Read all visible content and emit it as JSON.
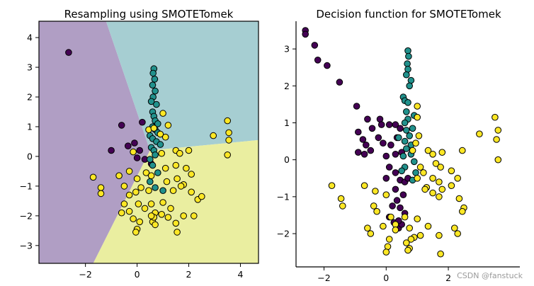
{
  "colors": {
    "purple_region": "#b09ec4",
    "teal_region": "#a6ced2",
    "yellow_region": "#eaeea0",
    "purple": "#440154",
    "teal": "#21918c",
    "yellow": "#fde725",
    "marker_edge": "#000000",
    "axis": "#000000"
  },
  "watermark": "CSDN @fanstuck",
  "chart_data": [
    {
      "type": "scatter",
      "title": "Resampling using SMOTETomek",
      "xlim": [
        -3.8,
        4.7
      ],
      "ylim": [
        -3.6,
        4.55
      ],
      "xticks": [
        -2,
        0,
        2,
        4
      ],
      "yticks": [
        -3,
        -2,
        -1,
        0,
        1,
        2,
        3,
        4
      ],
      "xtick_labels": [
        "−2",
        "0",
        "2",
        "4"
      ],
      "ytick_labels": [
        "−3",
        "−2",
        "−1",
        "0",
        "1",
        "2",
        "3",
        "4"
      ],
      "background": "decision regions (purple left, teal top-right, yellow bottom)",
      "series": [
        {
          "color": "purple",
          "points": [
            [
              -2.65,
              3.5
            ],
            [
              -0.6,
              1.05
            ],
            [
              -1.0,
              0.2
            ],
            [
              -0.1,
              0.45
            ],
            [
              0.2,
              1.15
            ],
            [
              0.1,
              0.2
            ],
            [
              0.0,
              -0.05
            ],
            [
              0.3,
              -0.1
            ],
            [
              0.55,
              -0.25
            ],
            [
              -0.35,
              0.35
            ]
          ]
        },
        {
          "color": "teal",
          "points": [
            [
              0.65,
              2.95
            ],
            [
              0.62,
              2.8
            ],
            [
              0.68,
              2.6
            ],
            [
              0.6,
              2.4
            ],
            [
              0.7,
              2.2
            ],
            [
              0.62,
              2.0
            ],
            [
              0.55,
              1.85
            ],
            [
              0.75,
              1.75
            ],
            [
              0.6,
              1.5
            ],
            [
              0.65,
              1.35
            ],
            [
              0.7,
              1.2
            ],
            [
              0.8,
              1.1
            ],
            [
              0.6,
              1.0
            ],
            [
              0.7,
              0.9
            ],
            [
              0.5,
              0.7
            ],
            [
              0.8,
              0.8
            ],
            [
              0.6,
              0.6
            ],
            [
              0.75,
              0.5
            ],
            [
              0.9,
              0.4
            ],
            [
              0.55,
              0.3
            ],
            [
              0.65,
              0.2
            ],
            [
              0.7,
              0.05
            ],
            [
              0.5,
              -0.1
            ],
            [
              0.6,
              -0.3
            ],
            [
              0.8,
              -0.55
            ],
            [
              0.5,
              -0.85
            ],
            [
              0.7,
              -1.05
            ],
            [
              1.0,
              -1.15
            ]
          ]
        },
        {
          "color": "yellow",
          "points": [
            [
              1.0,
              1.45
            ],
            [
              1.2,
              1.05
            ],
            [
              0.9,
              0.75
            ],
            [
              0.45,
              0.9
            ],
            [
              0.65,
              0.95
            ],
            [
              1.1,
              0.65
            ],
            [
              3.5,
              1.2
            ],
            [
              3.55,
              0.8
            ],
            [
              3.55,
              0.55
            ],
            [
              2.95,
              0.7
            ],
            [
              0.95,
              0.1
            ],
            [
              1.5,
              0.2
            ],
            [
              1.65,
              0.1
            ],
            [
              2.0,
              0.2
            ],
            [
              -0.15,
              0.15
            ],
            [
              -1.7,
              -0.7
            ],
            [
              -1.4,
              -1.05
            ],
            [
              -1.4,
              -1.25
            ],
            [
              -0.7,
              -0.65
            ],
            [
              -0.3,
              -0.5
            ],
            [
              0.0,
              -0.75
            ],
            [
              0.35,
              -0.55
            ],
            [
              0.55,
              -0.65
            ],
            [
              1.1,
              -0.4
            ],
            [
              1.5,
              -0.3
            ],
            [
              1.9,
              -0.4
            ],
            [
              1.55,
              -0.75
            ],
            [
              2.1,
              -0.6
            ],
            [
              1.8,
              -0.95
            ],
            [
              1.15,
              -0.85
            ],
            [
              -0.5,
              -1.0
            ],
            [
              -0.3,
              -1.3
            ],
            [
              -0.05,
              -1.2
            ],
            [
              0.15,
              -1.05
            ],
            [
              0.45,
              -1.15
            ],
            [
              -0.5,
              -1.6
            ],
            [
              -0.3,
              -1.85
            ],
            [
              -0.6,
              -1.9
            ],
            [
              0.05,
              -1.6
            ],
            [
              0.3,
              -1.75
            ],
            [
              0.55,
              -1.6
            ],
            [
              0.7,
              -1.9
            ],
            [
              -0.15,
              -2.1
            ],
            [
              0.1,
              -2.2
            ],
            [
              0.6,
              -2.2
            ],
            [
              0.7,
              -2.3
            ],
            [
              0.65,
              -2.05
            ],
            [
              1.0,
              -1.55
            ],
            [
              1.3,
              -1.75
            ],
            [
              1.2,
              -2.05
            ],
            [
              1.5,
              -2.25
            ],
            [
              1.55,
              -2.55
            ],
            [
              1.8,
              -2.0
            ],
            [
              2.2,
              -2.0
            ],
            [
              2.35,
              -1.45
            ],
            [
              2.5,
              -1.35
            ],
            [
              2.1,
              -1.2
            ],
            [
              1.4,
              -1.15
            ],
            [
              0.0,
              -2.45
            ],
            [
              -0.05,
              -2.55
            ],
            [
              3.5,
              0.05
            ],
            [
              0.95,
              -1.95
            ],
            [
              0.55,
              -2.0
            ],
            [
              1.7,
              -1.0
            ]
          ]
        }
      ]
    },
    {
      "type": "scatter",
      "title": "Decision function for SMOTETomek",
      "xlim": [
        -2.9,
        4.3
      ],
      "ylim": [
        -2.9,
        3.75
      ],
      "xticks": [
        -2,
        0,
        2
      ],
      "yticks": [
        -2,
        -1,
        0,
        1,
        2,
        3
      ],
      "xtick_labels": [
        "−2",
        "0",
        "2"
      ],
      "ytick_labels": [
        "−2",
        "−1",
        "0",
        "1",
        "2",
        "3"
      ],
      "series": [
        {
          "color": "purple",
          "points": [
            [
              -2.6,
              3.5
            ],
            [
              -2.6,
              3.4
            ],
            [
              -2.3,
              3.1
            ],
            [
              -2.2,
              2.7
            ],
            [
              -1.9,
              2.55
            ],
            [
              -1.5,
              2.1
            ],
            [
              -0.95,
              1.45
            ],
            [
              -0.6,
              1.1
            ],
            [
              -0.45,
              0.85
            ],
            [
              -0.9,
              0.75
            ],
            [
              -0.75,
              0.55
            ],
            [
              -0.65,
              0.4
            ],
            [
              -0.9,
              0.2
            ],
            [
              -0.5,
              0.25
            ],
            [
              -0.7,
              0.15
            ],
            [
              -0.2,
              1.1
            ],
            [
              -0.15,
              0.95
            ],
            [
              0.1,
              0.95
            ],
            [
              0.3,
              0.95
            ],
            [
              -0.25,
              0.6
            ],
            [
              -0.1,
              0.45
            ],
            [
              0.15,
              0.4
            ],
            [
              0.35,
              0.6
            ],
            [
              0.45,
              0.85
            ],
            [
              0.0,
              0.1
            ],
            [
              0.3,
              0.15
            ],
            [
              0.5,
              0.2
            ],
            [
              0.1,
              -0.2
            ],
            [
              0.3,
              -0.35
            ],
            [
              0.0,
              -0.5
            ],
            [
              0.3,
              -0.8
            ],
            [
              0.45,
              -0.55
            ],
            [
              0.55,
              -0.95
            ],
            [
              0.35,
              -1.1
            ],
            [
              0.2,
              -1.25
            ],
            [
              0.45,
              -1.3
            ],
            [
              0.6,
              -1.45
            ],
            [
              0.1,
              -1.55
            ],
            [
              0.25,
              -1.7
            ],
            [
              0.4,
              -1.85
            ],
            [
              0.5,
              -1.75
            ],
            [
              0.6,
              -0.6
            ],
            [
              0.7,
              -0.5
            ],
            [
              0.4,
              -1.65
            ]
          ]
        },
        {
          "color": "teal",
          "points": [
            [
              0.7,
              2.95
            ],
            [
              0.72,
              2.8
            ],
            [
              0.68,
              2.6
            ],
            [
              0.7,
              2.45
            ],
            [
              0.65,
              2.3
            ],
            [
              0.8,
              2.15
            ],
            [
              0.75,
              2.0
            ],
            [
              0.55,
              1.7
            ],
            [
              0.6,
              1.6
            ],
            [
              0.7,
              1.55
            ],
            [
              0.65,
              1.3
            ],
            [
              0.9,
              1.2
            ],
            [
              0.7,
              1.1
            ],
            [
              0.6,
              1.0
            ],
            [
              0.85,
              0.85
            ],
            [
              0.65,
              0.8
            ],
            [
              0.75,
              0.65
            ],
            [
              0.6,
              0.5
            ],
            [
              0.8,
              0.4
            ],
            [
              0.65,
              0.3
            ],
            [
              0.8,
              0.15
            ],
            [
              0.55,
              0.1
            ],
            [
              0.9,
              -0.05
            ],
            [
              0.6,
              -0.2
            ],
            [
              0.95,
              -0.35
            ],
            [
              0.85,
              -0.55
            ],
            [
              0.4,
              0.6
            ],
            [
              0.5,
              -0.3
            ]
          ]
        },
        {
          "color": "yellow",
          "points": [
            [
              1.0,
              1.45
            ],
            [
              1.0,
              1.15
            ],
            [
              1.05,
              0.65
            ],
            [
              0.95,
              0.45
            ],
            [
              0.85,
              0.25
            ],
            [
              1.35,
              0.25
            ],
            [
              1.5,
              0.15
            ],
            [
              1.8,
              0.2
            ],
            [
              2.45,
              0.25
            ],
            [
              3.5,
              1.15
            ],
            [
              3.6,
              0.8
            ],
            [
              3.55,
              0.55
            ],
            [
              3.0,
              0.7
            ],
            [
              3.6,
              0.0
            ],
            [
              1.1,
              -0.2
            ],
            [
              1.6,
              -0.1
            ],
            [
              1.75,
              -0.2
            ],
            [
              1.5,
              -0.5
            ],
            [
              1.7,
              -0.6
            ],
            [
              2.1,
              -0.3
            ],
            [
              2.3,
              -0.5
            ],
            [
              2.1,
              -0.7
            ],
            [
              1.8,
              -0.8
            ],
            [
              1.3,
              -0.75
            ],
            [
              1.2,
              -0.35
            ],
            [
              1.0,
              -0.5
            ],
            [
              -1.75,
              -0.7
            ],
            [
              -1.45,
              -1.05
            ],
            [
              -1.4,
              -1.25
            ],
            [
              -0.7,
              -0.7
            ],
            [
              -0.35,
              -0.85
            ],
            [
              0.0,
              -0.95
            ],
            [
              1.25,
              -0.8
            ],
            [
              1.5,
              -0.9
            ],
            [
              1.7,
              -1.0
            ],
            [
              2.35,
              -1.05
            ],
            [
              2.5,
              -1.3
            ],
            [
              2.45,
              -1.4
            ],
            [
              -0.4,
              -1.25
            ],
            [
              -0.3,
              -1.4
            ],
            [
              -0.6,
              -1.85
            ],
            [
              -0.1,
              -1.8
            ],
            [
              0.3,
              -1.75
            ],
            [
              0.15,
              -1.55
            ],
            [
              0.6,
              -1.55
            ],
            [
              0.75,
              -1.85
            ],
            [
              0.9,
              -2.1
            ],
            [
              0.8,
              -2.15
            ],
            [
              1.1,
              -2.05
            ],
            [
              1.35,
              -1.8
            ],
            [
              2.2,
              -1.85
            ],
            [
              2.3,
              -2.0
            ],
            [
              0.1,
              -2.15
            ],
            [
              0.05,
              -2.35
            ],
            [
              0.0,
              -2.5
            ],
            [
              0.65,
              -2.25
            ],
            [
              0.75,
              -2.4
            ],
            [
              0.7,
              -2.45
            ],
            [
              1.7,
              -2.05
            ],
            [
              1.75,
              -2.55
            ],
            [
              1.0,
              -1.6
            ],
            [
              -0.5,
              -2.0
            ],
            [
              0.3,
              -1.9
            ]
          ]
        }
      ]
    }
  ]
}
